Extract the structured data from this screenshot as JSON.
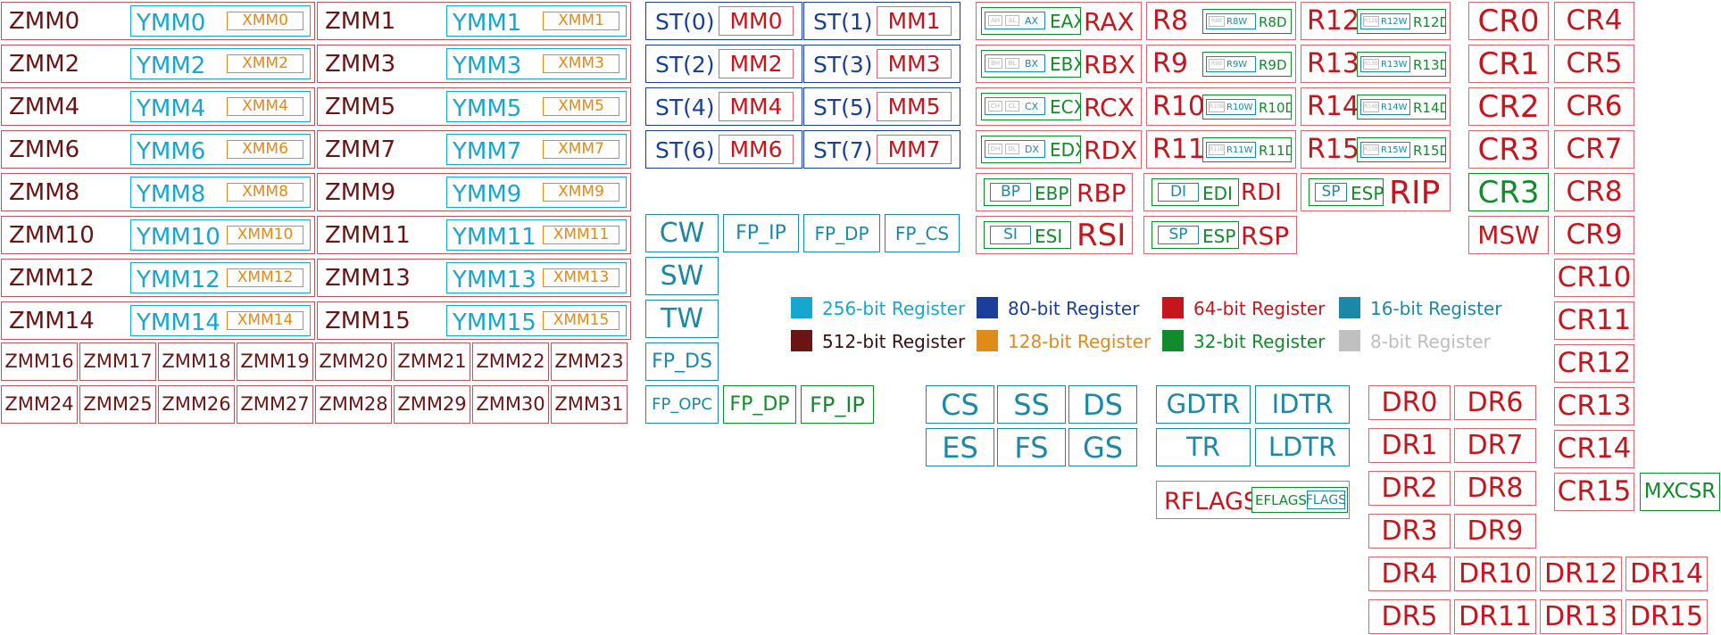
{
  "legend": {
    "r256": "256-bit Register",
    "r512": "512-bit Register",
    "r80": "80-bit Register",
    "r128": "128-bit Register",
    "r64": "64-bit Register",
    "r32": "32-bit Register",
    "r16": "16-bit Register",
    "r8": "8-bit Register"
  },
  "colors": {
    "bit512": "#6b1414",
    "bit256": "#17a6cf",
    "bit128": "#e08a1a",
    "bit80": "#1a3e9a",
    "bit64": "#c4161c",
    "bit32": "#128c2a",
    "bit16": "#1c88a8",
    "bit8": "#b9b9b9"
  },
  "zmm": [
    "ZMM0",
    "ZMM1",
    "ZMM2",
    "ZMM3",
    "ZMM4",
    "ZMM5",
    "ZMM6",
    "ZMM7",
    "ZMM8",
    "ZMM9",
    "ZMM10",
    "ZMM11",
    "ZMM12",
    "ZMM13",
    "ZMM14",
    "ZMM15"
  ],
  "ymm": [
    "YMM0",
    "YMM1",
    "YMM2",
    "YMM3",
    "YMM4",
    "YMM5",
    "YMM6",
    "YMM7",
    "YMM8",
    "YMM9",
    "YMM10",
    "YMM11",
    "YMM12",
    "YMM13",
    "YMM14",
    "YMM15"
  ],
  "xmm": [
    "XMM0",
    "XMM1",
    "XMM2",
    "XMM3",
    "XMM4",
    "XMM5",
    "XMM6",
    "XMM7",
    "XMM8",
    "XMM9",
    "XMM10",
    "XMM11",
    "XMM12",
    "XMM13",
    "XMM14",
    "XMM15"
  ],
  "zmm_hi": [
    "ZMM16",
    "ZMM17",
    "ZMM18",
    "ZMM19",
    "ZMM20",
    "ZMM21",
    "ZMM22",
    "ZMM23",
    "ZMM24",
    "ZMM25",
    "ZMM26",
    "ZMM27",
    "ZMM28",
    "ZMM29",
    "ZMM30",
    "ZMM31"
  ],
  "st": [
    "ST(0)",
    "ST(1)",
    "ST(2)",
    "ST(3)",
    "ST(4)",
    "ST(5)",
    "ST(6)",
    "ST(7)"
  ],
  "mm": [
    "MM0",
    "MM1",
    "MM2",
    "MM3",
    "MM4",
    "MM5",
    "MM6",
    "MM7"
  ],
  "fpu": {
    "cw": "CW",
    "sw": "SW",
    "tw": "TW",
    "fp_ds": "FP_DS",
    "fp_opc": "FP_OPC",
    "fp_ip": "FP_IP",
    "fp_dp": "FP_DP",
    "fp_cs": "FP_CS",
    "fp_dp2": "FP_DP",
    "fp_ip2": "FP_IP"
  },
  "gpr_legacy": [
    {
      "r8h": "AH",
      "r8l": "AL",
      "r16": "AX",
      "r32": "EAX",
      "r64": "RAX"
    },
    {
      "r8h": "BH",
      "r8l": "BL",
      "r16": "BX",
      "r32": "EBX",
      "r64": "RBX"
    },
    {
      "r8h": "CH",
      "r8l": "CL",
      "r16": "CX",
      "r32": "ECX",
      "r64": "RCX"
    },
    {
      "r8h": "DH",
      "r8l": "DL",
      "r16": "DX",
      "r32": "EDX",
      "r64": "RDX"
    }
  ],
  "gpr_ext": [
    {
      "r64": "R8",
      "r8": "R8B",
      "r16": "R8W",
      "r32": "R8D"
    },
    {
      "r64": "R12",
      "r8": "R12B",
      "r16": "R12W",
      "r32": "R12D"
    },
    {
      "r64": "R9",
      "r8": "R9B",
      "r16": "R9W",
      "r32": "R9D"
    },
    {
      "r64": "R13",
      "r8": "R13B",
      "r16": "R13W",
      "r32": "R13D"
    },
    {
      "r64": "R10",
      "r8": "R10B",
      "r16": "R10W",
      "r32": "R10D"
    },
    {
      "r64": "R14",
      "r8": "R14B",
      "r16": "R14W",
      "r32": "R14D"
    },
    {
      "r64": "R11",
      "r8": "R11B",
      "r16": "R11W",
      "r32": "R11D"
    },
    {
      "r64": "R15",
      "r8": "R15B",
      "r16": "R15W",
      "r32": "R15D"
    }
  ],
  "gpr_ptr": [
    {
      "r8": "BPL",
      "r16": "BP",
      "r32": "EBP",
      "r64": "RBP"
    },
    {
      "r8": "DIL",
      "r16": "DI",
      "r32": "EDI",
      "r64": "RDI"
    },
    {
      "r8": "SPL",
      "r16": "SP",
      "r32": "ESP",
      "r64": "RIP"
    },
    {
      "r8": "SIL",
      "r16": "SI",
      "r32": "ESI",
      "r64": "RSI"
    },
    {
      "r8": "SPL",
      "r16": "SP",
      "r32": "ESP",
      "r64": "RSP"
    }
  ],
  "seg": [
    "CS",
    "SS",
    "DS",
    "ES",
    "FS",
    "GS"
  ],
  "tables": [
    "GDTR",
    "IDTR",
    "TR",
    "LDTR"
  ],
  "flags": {
    "r64": "RFLAGS",
    "r32": "EFLAGS",
    "r16": "FLAGS"
  },
  "cr_a": [
    "CR0",
    "CR1",
    "CR2",
    "CR3",
    "CR3",
    "MSW"
  ],
  "cr_b": [
    "CR4",
    "CR5",
    "CR6",
    "CR7",
    "CR8",
    "CR9",
    "CR10",
    "CR11",
    "CR12",
    "CR13",
    "CR14",
    "CR15"
  ],
  "dr": [
    "DR0",
    "DR6",
    "DR1",
    "DR7",
    "DR2",
    "DR8",
    "DR3",
    "DR9",
    "DR4",
    "DR10",
    "DR12",
    "DR14",
    "DR5",
    "DR11",
    "DR13",
    "DR15"
  ],
  "mxcsr": "MXCSR"
}
